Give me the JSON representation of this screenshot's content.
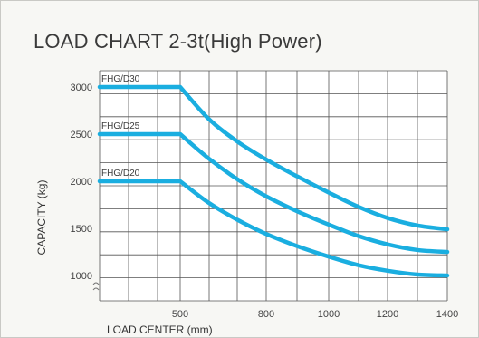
{
  "chart_data": {
    "type": "line",
    "title": "LOAD CHART 2-3t(High Power)",
    "xlabel": "LOAD CENTER (mm)",
    "ylabel": "CAPACITY (kg)",
    "xlim": [
      300,
      1400
    ],
    "ylim": [
      900,
      3100
    ],
    "x_ticks": [
      "500",
      "800",
      "1000",
      "1200",
      "1400"
    ],
    "y_ticks": [
      "3000",
      "2500",
      "2000",
      "1500",
      "1000"
    ],
    "grid": true,
    "color": "#1aaee0",
    "series": [
      {
        "name": "FHG/D30",
        "x": [
          300,
          500,
          600,
          700,
          800,
          900,
          1000,
          1100,
          1200,
          1300,
          1400
        ],
        "y": [
          3000,
          3000,
          2660,
          2420,
          2230,
          2050,
          1880,
          1730,
          1610,
          1530,
          1490
        ]
      },
      {
        "name": "FHG/D25",
        "x": [
          300,
          500,
          600,
          700,
          800,
          900,
          1000,
          1100,
          1200,
          1300,
          1400
        ],
        "y": [
          2500,
          2500,
          2240,
          2020,
          1840,
          1680,
          1540,
          1420,
          1330,
          1270,
          1250
        ]
      },
      {
        "name": "FHG/D20",
        "x": [
          300,
          500,
          600,
          700,
          800,
          900,
          1000,
          1100,
          1200,
          1300,
          1400
        ],
        "y": [
          2000,
          2000,
          1770,
          1590,
          1440,
          1310,
          1200,
          1110,
          1050,
          1010,
          1000
        ]
      }
    ]
  }
}
